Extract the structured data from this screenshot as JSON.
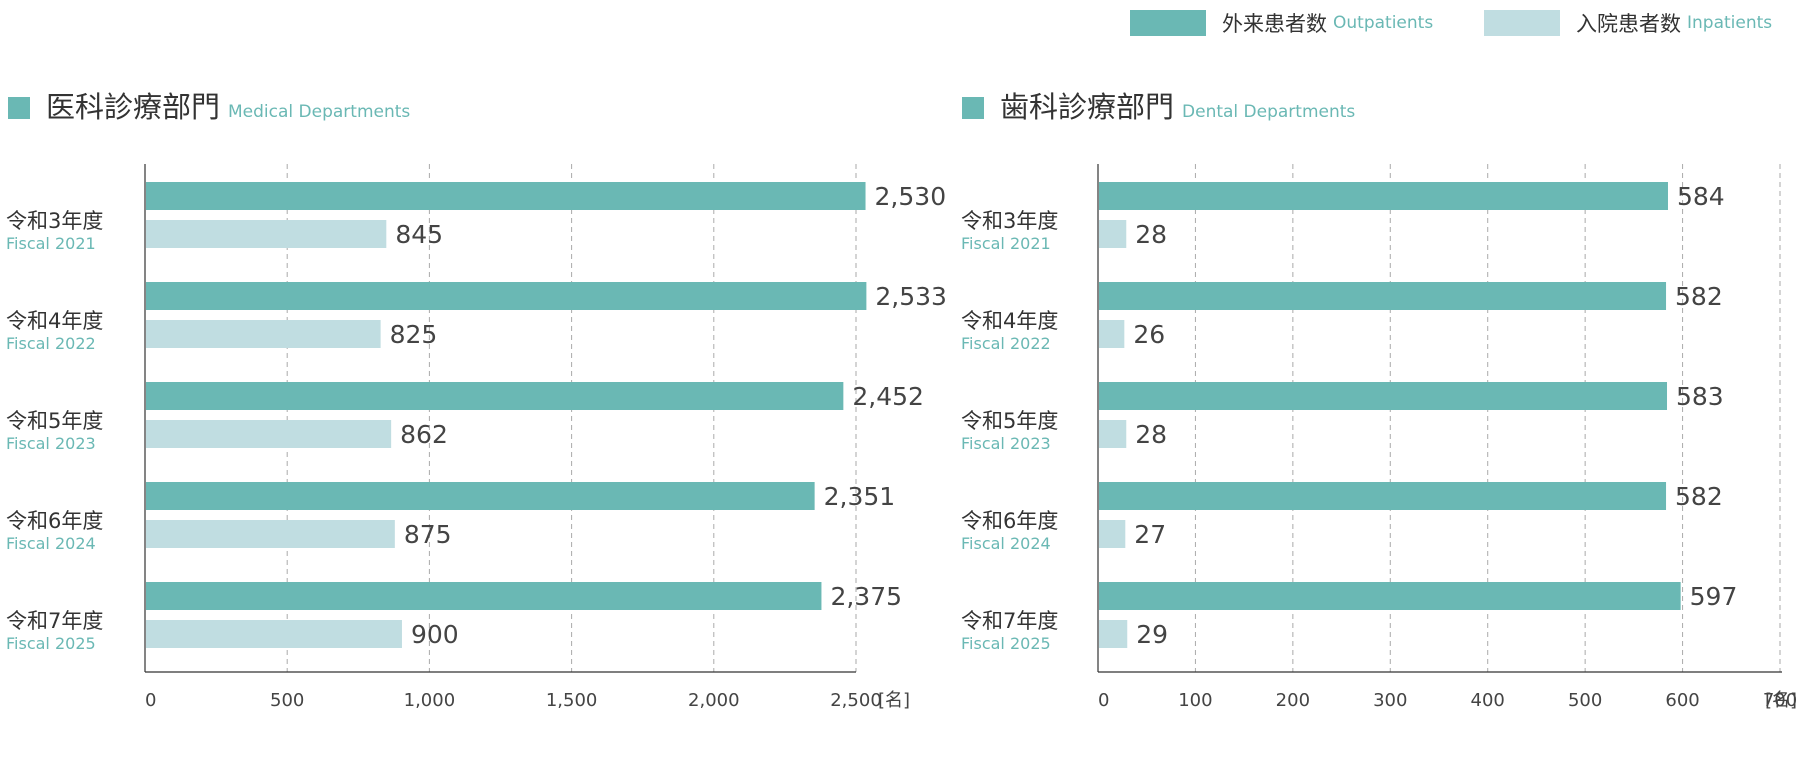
{
  "colors": {
    "outpatient": "#6ab8b4",
    "inpatient": "#c0dde1",
    "accent_text": "#6ab8b4",
    "axis": "#333333",
    "grid": "#aaaaaa"
  },
  "legend": {
    "outpatient_ja": "外来患者数",
    "outpatient_en": "Outpatients",
    "inpatient_ja": "入院患者数",
    "inpatient_en": "Inpatients"
  },
  "medical": {
    "title_ja": "医科診療部門",
    "title_en": "Medical Departments"
  },
  "dental": {
    "title_ja": "歯科診療部門",
    "title_en": "Dental Departments"
  },
  "unit": "[名]",
  "chart_data": [
    {
      "type": "bar",
      "orientation": "horizontal",
      "title": "医科診療部門 Medical Departments",
      "categories": [
        {
          "ja": "令和3年度",
          "en": "Fiscal 2021"
        },
        {
          "ja": "令和4年度",
          "en": "Fiscal 2022"
        },
        {
          "ja": "令和5年度",
          "en": "Fiscal 2023"
        },
        {
          "ja": "令和6年度",
          "en": "Fiscal 2024"
        },
        {
          "ja": "令和7年度",
          "en": "Fiscal 2025"
        }
      ],
      "series": [
        {
          "name": "外来患者数 Outpatients",
          "values": [
            2530,
            2533,
            2452,
            2351,
            2375
          ],
          "labels": [
            "2,530",
            "2,533",
            "2,452",
            "2,351",
            "2,375"
          ]
        },
        {
          "name": "入院患者数 Inpatients",
          "values": [
            845,
            825,
            862,
            875,
            900
          ],
          "labels": [
            "845",
            "825",
            "862",
            "875",
            "900"
          ]
        }
      ],
      "xlim": [
        0,
        2500
      ],
      "ticks": [
        0,
        500,
        1000,
        1500,
        2000,
        2500
      ],
      "tick_labels": [
        "0",
        "500",
        "1,000",
        "1,500",
        "2,000",
        "2,500"
      ],
      "grid": true,
      "legend": "top-right"
    },
    {
      "type": "bar",
      "orientation": "horizontal",
      "title": "歯科診療部門 Dental Departments",
      "categories": [
        {
          "ja": "令和3年度",
          "en": "Fiscal 2021"
        },
        {
          "ja": "令和4年度",
          "en": "Fiscal 2022"
        },
        {
          "ja": "令和5年度",
          "en": "Fiscal 2023"
        },
        {
          "ja": "令和6年度",
          "en": "Fiscal 2024"
        },
        {
          "ja": "令和7年度",
          "en": "Fiscal 2025"
        }
      ],
      "series": [
        {
          "name": "外来患者数 Outpatients",
          "values": [
            584,
            582,
            583,
            582,
            597
          ],
          "labels": [
            "584",
            "582",
            "583",
            "582",
            "597"
          ]
        },
        {
          "name": "入院患者数 Inpatients",
          "values": [
            28,
            26,
            28,
            27,
            29
          ],
          "labels": [
            "28",
            "26",
            "28",
            "27",
            "29"
          ]
        }
      ],
      "xlim": [
        0,
        700
      ],
      "ticks": [
        0,
        100,
        200,
        300,
        400,
        500,
        600,
        700
      ],
      "tick_labels": [
        "0",
        "100",
        "200",
        "300",
        "400",
        "500",
        "600",
        "700"
      ],
      "grid": true,
      "legend": "top-right"
    }
  ]
}
